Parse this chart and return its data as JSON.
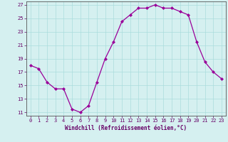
{
  "x": [
    0,
    1,
    2,
    3,
    4,
    5,
    6,
    7,
    8,
    9,
    10,
    11,
    12,
    13,
    14,
    15,
    16,
    17,
    18,
    19,
    20,
    21,
    22,
    23
  ],
  "y": [
    18,
    17.5,
    15.5,
    14.5,
    14.5,
    11.5,
    11.0,
    12.0,
    15.5,
    19.0,
    21.5,
    24.5,
    25.5,
    26.5,
    26.5,
    27.0,
    26.5,
    26.5,
    26.0,
    25.5,
    21.5,
    18.5,
    17.0,
    16.0
  ],
  "line_color": "#990099",
  "marker": "D",
  "marker_size": 2.0,
  "bg_color": "#d5f0f0",
  "grid_color": "#aadddd",
  "ylim": [
    10.5,
    27.5
  ],
  "yticks": [
    11,
    13,
    15,
    17,
    19,
    21,
    23,
    25,
    27
  ],
  "xlim": [
    -0.5,
    23.5
  ],
  "xticks": [
    0,
    1,
    2,
    3,
    4,
    5,
    6,
    7,
    8,
    9,
    10,
    11,
    12,
    13,
    14,
    15,
    16,
    17,
    18,
    19,
    20,
    21,
    22,
    23
  ],
  "xlabel": "Windchill (Refroidissement éolien,°C)",
  "xlabel_fontsize": 5.5,
  "tick_fontsize": 5.0,
  "axis_color": "#660066",
  "spine_color": "#555555"
}
